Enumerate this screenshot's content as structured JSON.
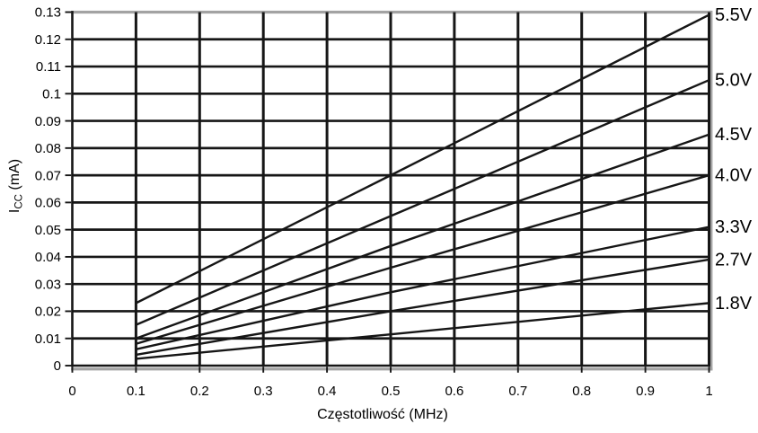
{
  "chart_data": {
    "type": "line",
    "title": "",
    "xlabel": "Częstotliwość (MHz)",
    "ylabel": {
      "prefix": "I",
      "sub": "CC",
      "suffix": " (mA)"
    },
    "xlim": [
      0,
      1
    ],
    "ylim": [
      0,
      0.13
    ],
    "grid": true,
    "legend_position": "right-edge-labels",
    "x_ticks": [
      {
        "v": 0,
        "label": "0"
      },
      {
        "v": 0.1,
        "label": "0.1"
      },
      {
        "v": 0.2,
        "label": "0.2"
      },
      {
        "v": 0.3,
        "label": "0.3"
      },
      {
        "v": 0.4,
        "label": "0.4"
      },
      {
        "v": 0.5,
        "label": "0.5"
      },
      {
        "v": 0.6,
        "label": "0.6"
      },
      {
        "v": 0.7,
        "label": "0.7"
      },
      {
        "v": 0.8,
        "label": "0.8"
      },
      {
        "v": 0.9,
        "label": "0.9"
      },
      {
        "v": 1,
        "label": "1"
      }
    ],
    "y_ticks": [
      {
        "v": 0,
        "label": "0"
      },
      {
        "v": 0.01,
        "label": "0.01"
      },
      {
        "v": 0.02,
        "label": "0.02"
      },
      {
        "v": 0.03,
        "label": "0.03"
      },
      {
        "v": 0.04,
        "label": "0.04"
      },
      {
        "v": 0.05,
        "label": "0.05"
      },
      {
        "v": 0.06,
        "label": "0.06"
      },
      {
        "v": 0.07,
        "label": "0.07"
      },
      {
        "v": 0.08,
        "label": "0.08"
      },
      {
        "v": 0.09,
        "label": "0.09"
      },
      {
        "v": 0.1,
        "label": "0.1"
      },
      {
        "v": 0.11,
        "label": "0.11"
      },
      {
        "v": 0.12,
        "label": "0.12"
      },
      {
        "v": 0.13,
        "label": "0.13"
      }
    ],
    "series": [
      {
        "name": "5.5V",
        "x": [
          0.1,
          0.5,
          1.0
        ],
        "y": [
          0.023,
          0.07,
          0.129
        ]
      },
      {
        "name": "5.0V",
        "x": [
          0.1,
          0.5,
          1.0
        ],
        "y": [
          0.015,
          0.055,
          0.105
        ]
      },
      {
        "name": "4.5V",
        "x": [
          0.1,
          0.5,
          1.0
        ],
        "y": [
          0.01,
          0.044,
          0.085
        ]
      },
      {
        "name": "4.0V",
        "x": [
          0.1,
          0.5,
          1.0
        ],
        "y": [
          0.008,
          0.036,
          0.07
        ]
      },
      {
        "name": "3.3V",
        "x": [
          0.1,
          0.5,
          1.0
        ],
        "y": [
          0.006,
          0.027,
          0.051
        ]
      },
      {
        "name": "2.7V",
        "x": [
          0.1,
          0.5,
          1.0
        ],
        "y": [
          0.004,
          0.02,
          0.039
        ]
      },
      {
        "name": "1.8V",
        "x": [
          0.1,
          0.5,
          1.0
        ],
        "y": [
          0.0025,
          0.0115,
          0.023
        ]
      }
    ],
    "colors": {
      "line": "#161616",
      "grid": "#161616",
      "axis": "#161616",
      "frame": "#a3a3a3",
      "text": "#000000",
      "background": "#ffffff"
    }
  }
}
